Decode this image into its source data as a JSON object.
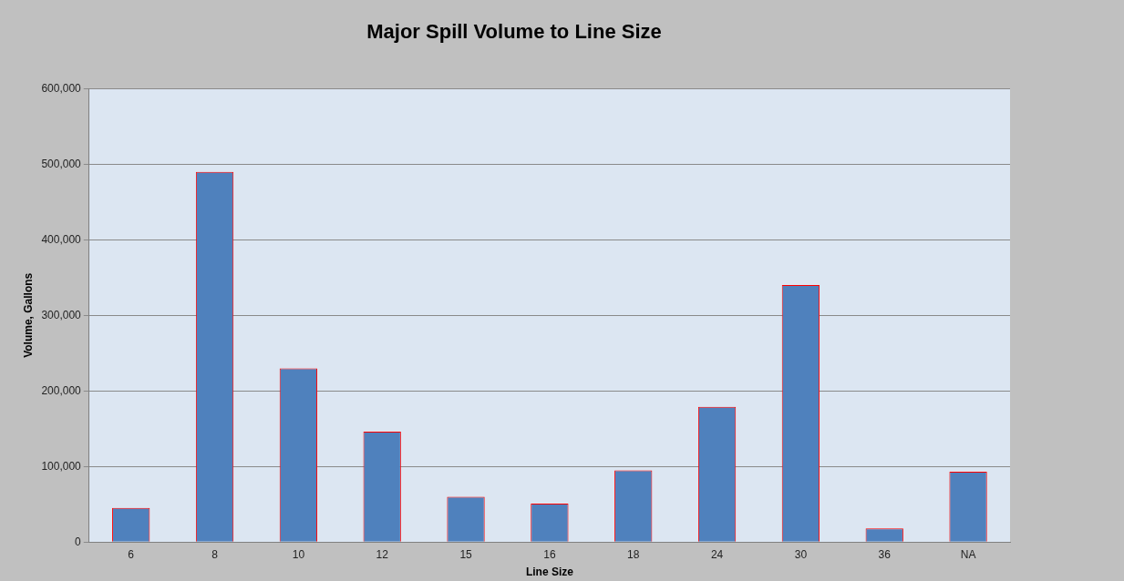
{
  "chart_data": {
    "type": "bar",
    "title": "Major Spill Volume to Line Size",
    "xlabel": "Line Size",
    "ylabel": "Volume, Gallons",
    "categories": [
      "6",
      "8",
      "10",
      "12",
      "15",
      "16",
      "18",
      "24",
      "30",
      "36",
      "NA"
    ],
    "values": [
      45000,
      490000,
      230000,
      146000,
      60000,
      51000,
      95000,
      179000,
      340000,
      18000,
      93000
    ],
    "color": "#4f81bd",
    "ylim": [
      0,
      600000
    ],
    "yticks": [
      {
        "value": 0,
        "label": "0"
      },
      {
        "value": 100000,
        "label": "100,000"
      },
      {
        "value": 200000,
        "label": "200,000"
      },
      {
        "value": 300000,
        "label": "300,000"
      },
      {
        "value": 400000,
        "label": "400,000"
      },
      {
        "value": 500000,
        "label": "500,000"
      },
      {
        "value": 600000,
        "label": "600,000"
      }
    ],
    "grid": "y",
    "legend": false
  }
}
